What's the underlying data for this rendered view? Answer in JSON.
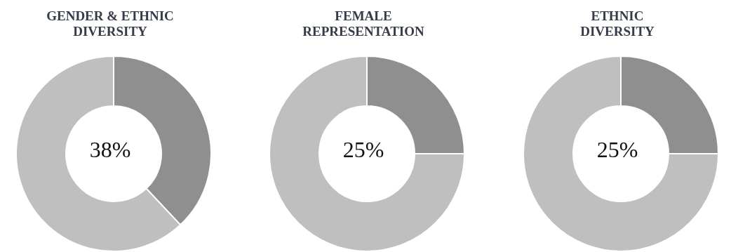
{
  "chart_data": [
    {
      "type": "donut",
      "title": "GENDER & ETHNIC\nDIVERSITY",
      "categories": [
        null,
        null
      ],
      "values": [
        38,
        62
      ],
      "colors": [
        "#8f8f8f",
        "#bfbfbf"
      ],
      "annotations": [
        "38%"
      ]
    },
    {
      "type": "donut",
      "title": "FEMALE\nREPRESENTATION",
      "categories": [
        null,
        null
      ],
      "values": [
        25,
        75
      ],
      "colors": [
        "#8f8f8f",
        "#bfbfbf"
      ],
      "annotations": [
        "25%"
      ]
    },
    {
      "type": "donut",
      "title": "ETHNIC\nDIVERSITY",
      "categories": [
        null,
        null
      ],
      "values": [
        25,
        75
      ],
      "colors": [
        "#8f8f8f",
        "#bfbfbf"
      ],
      "annotations": [
        "25%"
      ]
    }
  ]
}
